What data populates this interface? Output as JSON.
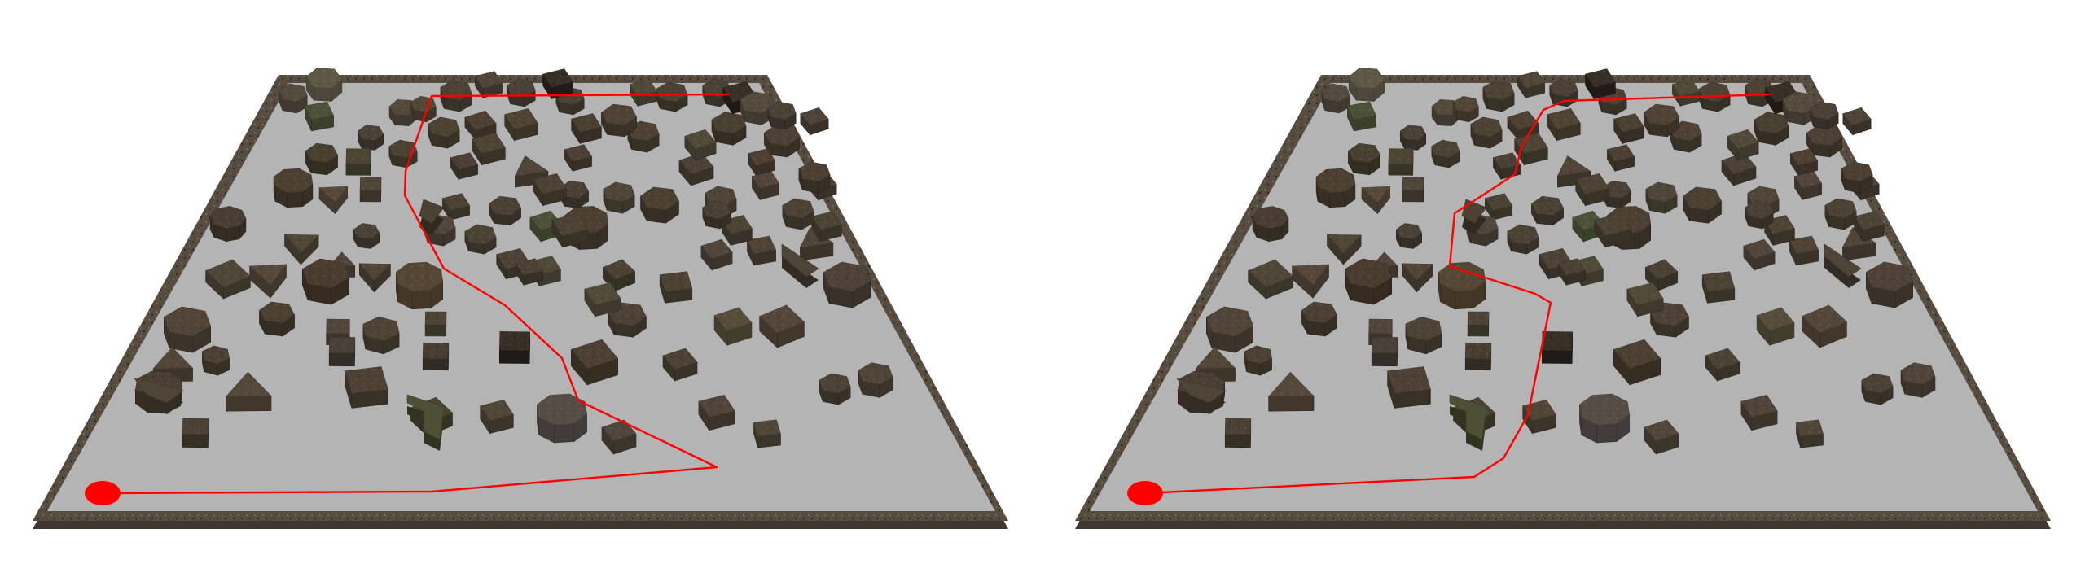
{
  "colors": {
    "background": "#ffffff",
    "floor": "#b4b4b4",
    "wall_top": "#5a5044",
    "wall_side": "#3e3830",
    "path": "#ff0000",
    "start_marker": "#ff0000"
  },
  "panels": [
    {
      "name": "left-scene"
    },
    {
      "name": "right-scene"
    }
  ]
}
